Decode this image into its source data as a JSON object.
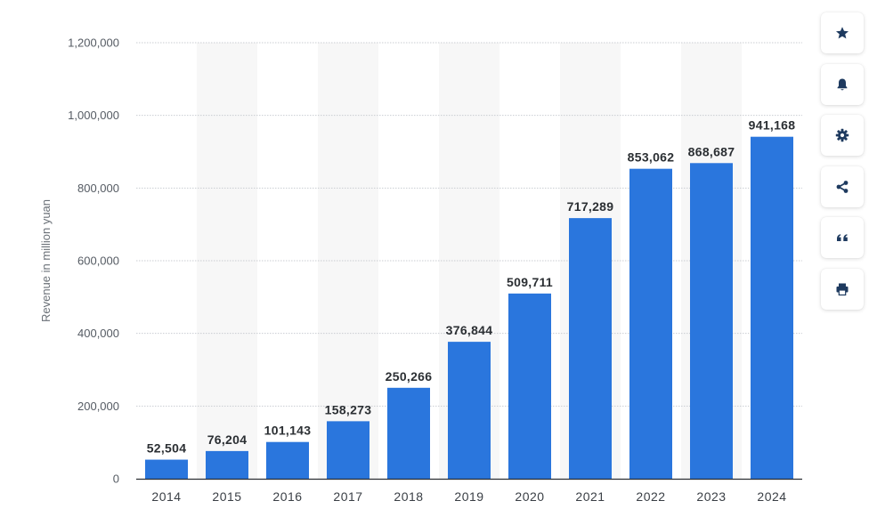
{
  "chart_data": {
    "type": "bar",
    "title": "",
    "xlabel": "",
    "ylabel": "Revenue in million yuan",
    "categories": [
      "2014",
      "2015",
      "2016",
      "2017",
      "2018",
      "2019",
      "2020",
      "2021",
      "2022",
      "2023",
      "2024"
    ],
    "values": [
      52504,
      76204,
      101143,
      158273,
      250266,
      376844,
      509711,
      717289,
      853062,
      868687,
      941168
    ],
    "value_labels": [
      "52,504",
      "76,204",
      "101,143",
      "158,273",
      "250,266",
      "376,844",
      "509,711",
      "717,289",
      "853,062",
      "868,687",
      "941,168"
    ],
    "ylim": [
      0,
      1200000
    ],
    "yticks": [
      0,
      200000,
      400000,
      600000,
      800000,
      1000000,
      1200000
    ],
    "ytick_labels": [
      "0",
      "200,000",
      "400,000",
      "600,000",
      "800,000",
      "1,000,000",
      "1,200,000"
    ],
    "grid": true,
    "bar_color": "#2a76dd",
    "alternating_band_color": "#f7f7f7"
  },
  "toolbar": {
    "buttons": [
      {
        "name": "favorite-button",
        "icon": "star-icon"
      },
      {
        "name": "notification-button",
        "icon": "bell-icon"
      },
      {
        "name": "settings-button",
        "icon": "gear-icon"
      },
      {
        "name": "share-button",
        "icon": "share-icon"
      },
      {
        "name": "cite-button",
        "icon": "quote-icon"
      },
      {
        "name": "print-button",
        "icon": "print-icon"
      }
    ],
    "icon_color": "#1e3a5f"
  }
}
